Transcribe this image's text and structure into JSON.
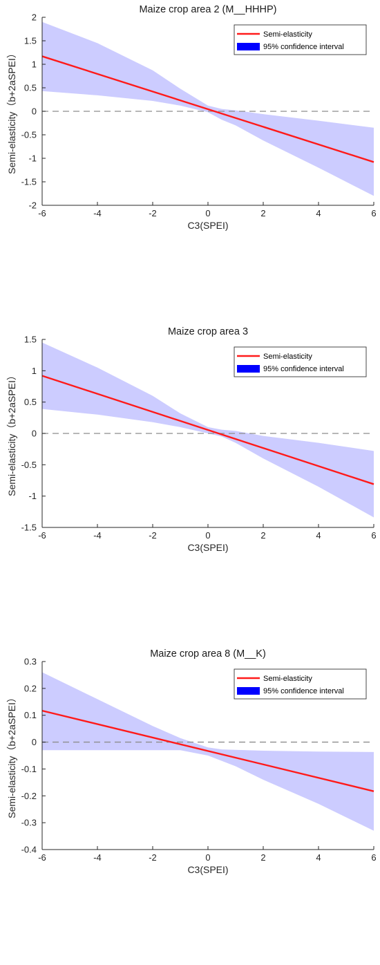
{
  "colors": {
    "line": "#ff1a1a",
    "band_fill": "#ccccff",
    "legend_patch": "#0000ff",
    "zero_line": "#8c8c8c",
    "axis": "#262626"
  },
  "chart_data": [
    {
      "type": "line",
      "title": "Maize crop area 2 (M__HHHP)",
      "xlabel": "C3(SPEI)",
      "ylabel": "Semi-elasticity（b+2aSPEI）",
      "xlim": [
        -6,
        6
      ],
      "ylim": [
        -2,
        2
      ],
      "xticks": [
        "-6",
        "-4",
        "-2",
        "0",
        "2",
        "4",
        "6"
      ],
      "yticks": [
        "2",
        "1.5",
        "1",
        "0.5",
        "0",
        "-0.5",
        "-1",
        "-1.5",
        "-2"
      ],
      "legend": {
        "location": "top-right",
        "entries": [
          "Semi-elasticity",
          "95% confidence interval"
        ]
      },
      "reference_line": {
        "y": 0,
        "style": "dashed"
      },
      "series": [
        {
          "name": "Semi-elasticity",
          "x": [
            -6,
            6
          ],
          "y": [
            1.17,
            -1.08
          ]
        },
        {
          "name": "95% confidence interval",
          "x": [
            -6,
            -4,
            -2,
            -1,
            0,
            0.5,
            1,
            2,
            4,
            6
          ],
          "lower": [
            0.43,
            0.34,
            0.22,
            0.12,
            -0.02,
            -0.18,
            -0.3,
            -0.62,
            -1.2,
            -1.8
          ],
          "upper": [
            1.9,
            1.45,
            0.87,
            0.48,
            0.12,
            0.05,
            0.02,
            -0.06,
            -0.2,
            -0.35
          ]
        }
      ]
    },
    {
      "type": "line",
      "title": "Maize crop area 3",
      "xlabel": "C3(SPEI)",
      "ylabel": "Semi-elasticity（b+2aSPEI）",
      "xlim": [
        -6,
        6
      ],
      "ylim": [
        -1.5,
        1.5
      ],
      "xticks": [
        "-6",
        "-4",
        "-2",
        "0",
        "2",
        "4",
        "6"
      ],
      "yticks": [
        "1.5",
        "1",
        "0.5",
        "0",
        "-0.5",
        "-1",
        "-1.5"
      ],
      "legend": {
        "location": "top-right",
        "entries": [
          "Semi-elasticity",
          "95% confidence interval"
        ]
      },
      "reference_line": {
        "y": 0,
        "style": "dashed"
      },
      "series": [
        {
          "name": "Semi-elasticity",
          "x": [
            -6,
            6
          ],
          "y": [
            0.92,
            -0.81
          ]
        },
        {
          "name": "95% confidence interval",
          "x": [
            -6,
            -4,
            -2,
            -1,
            0,
            0.5,
            1,
            2,
            4,
            6
          ],
          "lower": [
            0.39,
            0.3,
            0.18,
            0.1,
            0.0,
            -0.05,
            -0.15,
            -0.4,
            -0.85,
            -1.34
          ],
          "upper": [
            1.45,
            1.05,
            0.6,
            0.32,
            0.1,
            0.06,
            0.04,
            -0.04,
            -0.15,
            -0.28
          ]
        }
      ]
    },
    {
      "type": "line",
      "title": "Maize crop area 8 (M__K)",
      "xlabel": "C3(SPEI)",
      "ylabel": "Semi-elasticity（b+2aSPEI）",
      "xlim": [
        -6,
        6
      ],
      "ylim": [
        -0.4,
        0.3
      ],
      "xticks": [
        "-6",
        "-4",
        "-2",
        "0",
        "2",
        "4",
        "6"
      ],
      "yticks": [
        "0.3",
        "0.2",
        "0.1",
        "0",
        "-0.1",
        "-0.2",
        "-0.3",
        "-0.4"
      ],
      "legend": {
        "location": "top-right",
        "entries": [
          "Semi-elasticity",
          "95% confidence interval"
        ]
      },
      "reference_line": {
        "y": 0,
        "style": "dashed"
      },
      "series": [
        {
          "name": "Semi-elasticity",
          "x": [
            -6,
            6
          ],
          "y": [
            0.117,
            -0.183
          ]
        },
        {
          "name": "95% confidence interval",
          "x": [
            -6,
            -4,
            -2,
            -1,
            0,
            0.5,
            1,
            2,
            4,
            6
          ],
          "lower": [
            -0.03,
            -0.03,
            -0.03,
            -0.03,
            -0.05,
            -0.07,
            -0.09,
            -0.14,
            -0.23,
            -0.33
          ],
          "upper": [
            0.26,
            0.16,
            0.06,
            0.015,
            -0.02,
            -0.027,
            -0.029,
            -0.032,
            -0.035,
            -0.037
          ]
        }
      ]
    }
  ]
}
